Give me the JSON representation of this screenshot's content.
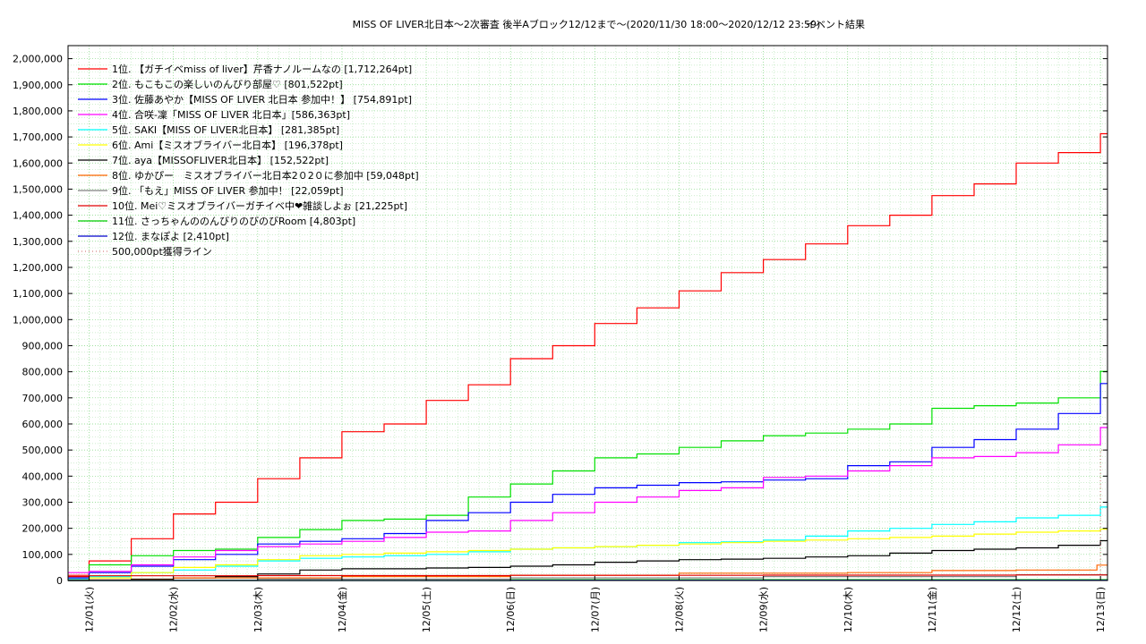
{
  "chart_data": {
    "type": "line",
    "title": "MISS OF LIVER北日本～2次審査 後半Aブロック12/12まで～(2020/11/30 18:00～2020/12/12 23:59)",
    "subtitle": "イベント結果",
    "xlabel": "",
    "ylabel": "",
    "grid": true,
    "legend_position": "top-left",
    "x_range": [
      "2020-11-30 18:00",
      "2020-12-13 02:00"
    ],
    "ylim": [
      0,
      2050000
    ],
    "y_ticks": [
      {
        "v": 0,
        "label": "0"
      },
      {
        "v": 100000,
        "label": "100,000"
      },
      {
        "v": 200000,
        "label": "200,000"
      },
      {
        "v": 300000,
        "label": "300,000"
      },
      {
        "v": 400000,
        "label": "400,000"
      },
      {
        "v": 500000,
        "label": "500,000"
      },
      {
        "v": 600000,
        "label": "600,000"
      },
      {
        "v": 700000,
        "label": "700,000"
      },
      {
        "v": 800000,
        "label": "800,000"
      },
      {
        "v": 900000,
        "label": "900,000"
      },
      {
        "v": 1000000,
        "label": "1,000,000"
      },
      {
        "v": 1100000,
        "label": "1,100,000"
      },
      {
        "v": 1200000,
        "label": "1,200,000"
      },
      {
        "v": 1300000,
        "label": "1,300,000"
      },
      {
        "v": 1400000,
        "label": "1,400,000"
      },
      {
        "v": 1500000,
        "label": "1,500,000"
      },
      {
        "v": 1600000,
        "label": "1,600,000"
      },
      {
        "v": 1700000,
        "label": "1,700,000"
      },
      {
        "v": 1800000,
        "label": "1,800,000"
      },
      {
        "v": 1900000,
        "label": "1,900,000"
      },
      {
        "v": 2000000,
        "label": "2,000,000"
      }
    ],
    "x_ticks": [
      {
        "x": "2020-12-01 00:00",
        "label": "12/01(火)"
      },
      {
        "x": "2020-12-02 00:00",
        "label": "12/02(水)"
      },
      {
        "x": "2020-12-03 00:00",
        "label": "12/03(木)"
      },
      {
        "x": "2020-12-04 00:00",
        "label": "12/04(金)"
      },
      {
        "x": "2020-12-05 00:00",
        "label": "12/05(土)"
      },
      {
        "x": "2020-12-06 00:00",
        "label": "12/06(日)"
      },
      {
        "x": "2020-12-07 00:00",
        "label": "12/07(月)"
      },
      {
        "x": "2020-12-08 00:00",
        "label": "12/08(火)"
      },
      {
        "x": "2020-12-09 00:00",
        "label": "12/09(水)"
      },
      {
        "x": "2020-12-10 00:00",
        "label": "12/10(木)"
      },
      {
        "x": "2020-12-11 00:00",
        "label": "12/11(金)"
      },
      {
        "x": "2020-12-12 00:00",
        "label": "12/12(土)"
      },
      {
        "x": "2020-12-13 00:00",
        "label": "12/13(日)"
      }
    ],
    "series": [
      {
        "name": "1位. 【ガチイベmiss of liver】芹香ナノルームなの [1,712,264pt]",
        "color": "#ff0000",
        "style": "solid",
        "x": [
          "2020-11-30 18:00",
          "2020-12-01 00:00",
          "2020-12-01 12:00",
          "2020-12-02 00:00",
          "2020-12-02 12:00",
          "2020-12-03 00:00",
          "2020-12-03 12:00",
          "2020-12-04 00:00",
          "2020-12-04 12:00",
          "2020-12-05 00:00",
          "2020-12-05 12:00",
          "2020-12-06 00:00",
          "2020-12-06 12:00",
          "2020-12-07 00:00",
          "2020-12-07 12:00",
          "2020-12-08 00:00",
          "2020-12-08 12:00",
          "2020-12-09 00:00",
          "2020-12-09 12:00",
          "2020-12-10 00:00",
          "2020-12-10 12:00",
          "2020-12-11 00:00",
          "2020-12-11 12:00",
          "2020-12-12 00:00",
          "2020-12-12 12:00",
          "2020-12-12 23:59",
          "2020-12-13 02:00"
        ],
        "y": [
          20000,
          75000,
          160000,
          255000,
          300000,
          390000,
          470000,
          570000,
          600000,
          690000,
          750000,
          850000,
          900000,
          985000,
          1045000,
          1110000,
          1180000,
          1230000,
          1290000,
          1360000,
          1400000,
          1475000,
          1520000,
          1600000,
          1640000,
          1712264,
          1712264
        ]
      },
      {
        "name": "2位. もこもこの楽しいのんびり部屋♡ [801,522pt]",
        "color": "#00e000",
        "style": "solid",
        "x": [
          "2020-11-30 18:00",
          "2020-12-01 00:00",
          "2020-12-01 12:00",
          "2020-12-02 00:00",
          "2020-12-02 12:00",
          "2020-12-03 00:00",
          "2020-12-03 12:00",
          "2020-12-04 00:00",
          "2020-12-04 12:00",
          "2020-12-05 00:00",
          "2020-12-05 12:00",
          "2020-12-06 00:00",
          "2020-12-06 12:00",
          "2020-12-07 00:00",
          "2020-12-07 12:00",
          "2020-12-08 00:00",
          "2020-12-08 12:00",
          "2020-12-09 00:00",
          "2020-12-09 12:00",
          "2020-12-10 00:00",
          "2020-12-10 12:00",
          "2020-12-11 00:00",
          "2020-12-11 12:00",
          "2020-12-12 00:00",
          "2020-12-12 12:00",
          "2020-12-12 23:59",
          "2020-12-13 02:00"
        ],
        "y": [
          5000,
          60000,
          95000,
          115000,
          120000,
          165000,
          195000,
          230000,
          235000,
          250000,
          320000,
          370000,
          420000,
          470000,
          485000,
          510000,
          535000,
          555000,
          565000,
          580000,
          600000,
          660000,
          670000,
          680000,
          700000,
          801522,
          801522
        ]
      },
      {
        "name": "3位. 佐藤あやか【MISS OF LIVER 北日本 参加中！】 [754,891pt]",
        "color": "#0000ff",
        "style": "solid",
        "x": [
          "2020-11-30 18:00",
          "2020-12-01 00:00",
          "2020-12-01 12:00",
          "2020-12-02 00:00",
          "2020-12-02 12:00",
          "2020-12-03 00:00",
          "2020-12-03 12:00",
          "2020-12-04 00:00",
          "2020-12-04 12:00",
          "2020-12-05 00:00",
          "2020-12-05 12:00",
          "2020-12-06 00:00",
          "2020-12-06 12:00",
          "2020-12-07 00:00",
          "2020-12-07 12:00",
          "2020-12-08 00:00",
          "2020-12-08 12:00",
          "2020-12-09 00:00",
          "2020-12-09 12:00",
          "2020-12-10 00:00",
          "2020-12-10 12:00",
          "2020-12-11 00:00",
          "2020-12-11 12:00",
          "2020-12-12 00:00",
          "2020-12-12 12:00",
          "2020-12-12 23:59",
          "2020-12-13 02:00"
        ],
        "y": [
          10000,
          30000,
          55000,
          80000,
          100000,
          140000,
          150000,
          160000,
          180000,
          230000,
          260000,
          300000,
          330000,
          355000,
          365000,
          375000,
          378000,
          385000,
          390000,
          440000,
          455000,
          510000,
          540000,
          580000,
          640000,
          754891,
          754891
        ]
      },
      {
        "name": "4位. 合咲-凜「MISS OF LIVER 北日本」[586,363pt]",
        "color": "#ff00ff",
        "style": "solid",
        "x": [
          "2020-11-30 18:00",
          "2020-12-01 00:00",
          "2020-12-01 12:00",
          "2020-12-02 00:00",
          "2020-12-02 12:00",
          "2020-12-03 00:00",
          "2020-12-03 12:00",
          "2020-12-04 00:00",
          "2020-12-04 12:00",
          "2020-12-05 00:00",
          "2020-12-05 12:00",
          "2020-12-06 00:00",
          "2020-12-06 12:00",
          "2020-12-07 00:00",
          "2020-12-07 12:00",
          "2020-12-08 00:00",
          "2020-12-08 12:00",
          "2020-12-09 00:00",
          "2020-12-09 12:00",
          "2020-12-10 00:00",
          "2020-12-10 12:00",
          "2020-12-11 00:00",
          "2020-12-11 12:00",
          "2020-12-12 00:00",
          "2020-12-12 12:00",
          "2020-12-12 23:59",
          "2020-12-13 02:00"
        ],
        "y": [
          30000,
          35000,
          60000,
          90000,
          115000,
          130000,
          140000,
          150000,
          165000,
          185000,
          190000,
          230000,
          260000,
          300000,
          320000,
          345000,
          355000,
          395000,
          400000,
          420000,
          440000,
          470000,
          475000,
          490000,
          520000,
          586363,
          586363
        ]
      },
      {
        "name": "5位. SAKI【MISS OF LIVER北日本】 [281,385pt]",
        "color": "#00ffff",
        "style": "solid",
        "x": [
          "2020-11-30 18:00",
          "2020-12-01 00:00",
          "2020-12-01 12:00",
          "2020-12-02 00:00",
          "2020-12-02 12:00",
          "2020-12-03 00:00",
          "2020-12-03 12:00",
          "2020-12-04 00:00",
          "2020-12-04 12:00",
          "2020-12-05 00:00",
          "2020-12-05 12:00",
          "2020-12-06 00:00",
          "2020-12-06 12:00",
          "2020-12-07 00:00",
          "2020-12-07 12:00",
          "2020-12-08 00:00",
          "2020-12-08 12:00",
          "2020-12-09 00:00",
          "2020-12-09 12:00",
          "2020-12-10 00:00",
          "2020-12-10 12:00",
          "2020-12-11 00:00",
          "2020-12-11 12:00",
          "2020-12-12 00:00",
          "2020-12-12 12:00",
          "2020-12-12 23:59",
          "2020-12-13 02:00"
        ],
        "y": [
          5000,
          15000,
          30000,
          40000,
          55000,
          75000,
          85000,
          90000,
          95000,
          100000,
          110000,
          120000,
          125000,
          130000,
          135000,
          145000,
          148000,
          155000,
          170000,
          190000,
          200000,
          215000,
          225000,
          240000,
          250000,
          281385,
          281385
        ]
      },
      {
        "name": "6位. Ami【ミスオブライバー北日本】 [196,378pt]",
        "color": "#ffff00",
        "style": "solid",
        "x": [
          "2020-11-30 18:00",
          "2020-12-01 00:00",
          "2020-12-01 12:00",
          "2020-12-02 00:00",
          "2020-12-02 12:00",
          "2020-12-03 00:00",
          "2020-12-03 12:00",
          "2020-12-04 00:00",
          "2020-12-04 12:00",
          "2020-12-05 00:00",
          "2020-12-05 12:00",
          "2020-12-06 00:00",
          "2020-12-06 12:00",
          "2020-12-07 00:00",
          "2020-12-07 12:00",
          "2020-12-08 00:00",
          "2020-12-08 12:00",
          "2020-12-09 00:00",
          "2020-12-09 12:00",
          "2020-12-10 00:00",
          "2020-12-10 12:00",
          "2020-12-11 00:00",
          "2020-12-11 12:00",
          "2020-12-12 00:00",
          "2020-12-12 12:00",
          "2020-12-12 23:59",
          "2020-12-13 02:00"
        ],
        "y": [
          0,
          10000,
          30000,
          50000,
          60000,
          80000,
          95000,
          100000,
          105000,
          110000,
          115000,
          120000,
          125000,
          130000,
          135000,
          140000,
          145000,
          150000,
          155000,
          160000,
          165000,
          170000,
          178000,
          185000,
          190000,
          196378,
          196378
        ]
      },
      {
        "name": "7位. aya【MISSOFLIVER北日本】 [152,522pt]",
        "color": "#000000",
        "style": "solid",
        "x": [
          "2020-11-30 18:00",
          "2020-12-01 00:00",
          "2020-12-01 12:00",
          "2020-12-02 00:00",
          "2020-12-02 12:00",
          "2020-12-03 00:00",
          "2020-12-03 12:00",
          "2020-12-04 00:00",
          "2020-12-04 12:00",
          "2020-12-05 00:00",
          "2020-12-05 12:00",
          "2020-12-06 00:00",
          "2020-12-06 12:00",
          "2020-12-07 00:00",
          "2020-12-07 12:00",
          "2020-12-08 00:00",
          "2020-12-08 12:00",
          "2020-12-09 00:00",
          "2020-12-09 12:00",
          "2020-12-10 00:00",
          "2020-12-10 12:00",
          "2020-12-11 00:00",
          "2020-12-11 12:00",
          "2020-12-12 00:00",
          "2020-12-12 12:00",
          "2020-12-12 23:59",
          "2020-12-13 02:00"
        ],
        "y": [
          0,
          2000,
          5000,
          10000,
          15000,
          25000,
          40000,
          45000,
          45000,
          48000,
          50000,
          55000,
          60000,
          70000,
          75000,
          80000,
          82000,
          85000,
          90000,
          95000,
          105000,
          115000,
          120000,
          125000,
          135000,
          152522,
          152522
        ]
      },
      {
        "name": "8位. ゆかぴー　ミスオブライバー北日本2０2０に参加中 [59,048pt]",
        "color": "#ff6600",
        "style": "solid",
        "x": [
          "2020-11-30 18:00",
          "2020-12-02 00:00",
          "2020-12-04 00:00",
          "2020-12-06 00:00",
          "2020-12-08 00:00",
          "2020-12-10 00:00",
          "2020-12-11 00:00",
          "2020-12-12 00:00",
          "2020-12-12 23:00",
          "2020-12-13 02:00"
        ],
        "y": [
          2000,
          10000,
          15000,
          20000,
          28000,
          30000,
          38000,
          40000,
          59048,
          59048
        ]
      },
      {
        "name": "9位. 「もえ」MISS OF LIVER 参加中！ [22,059pt]",
        "color": "#808080",
        "style": "solid",
        "x": [
          "2020-11-30 18:00",
          "2020-12-03 00:00",
          "2020-12-06 00:00",
          "2020-12-09 00:00",
          "2020-12-12 00:00",
          "2020-12-13 02:00"
        ],
        "y": [
          1000,
          5000,
          10000,
          15000,
          22059,
          22059
        ]
      },
      {
        "name": "10位. Mei♡ミスオブライバーガチイベ中❤雑談しよぉ [21,225pt]",
        "color": "#e00000",
        "style": "solid",
        "x": [
          "2020-11-30 18:00",
          "2020-12-01 00:00",
          "2020-12-03 00:00",
          "2020-12-06 00:00",
          "2020-12-09 00:00",
          "2020-12-12 00:00",
          "2020-12-13 02:00"
        ],
        "y": [
          15000,
          18000,
          19000,
          20000,
          20500,
          21225,
          21225
        ]
      },
      {
        "name": "11位. さっちゃんののんびりのびのびRoom [4,803pt]",
        "color": "#00cc00",
        "style": "solid",
        "x": [
          "2020-11-30 18:00",
          "2020-12-06 00:00",
          "2020-12-13 02:00"
        ],
        "y": [
          0,
          3000,
          4803
        ]
      },
      {
        "name": "12位. まなぽよ [2,410pt]",
        "color": "#0000cc",
        "style": "solid",
        "x": [
          "2020-11-30 18:00",
          "2020-12-06 00:00",
          "2020-12-13 02:00"
        ],
        "y": [
          0,
          1000,
          2410
        ]
      },
      {
        "name": "500,000pt獲得ライン",
        "color": "#cc6666",
        "style": "dotted",
        "x": [
          "2020-11-30 18:00",
          "2020-12-12 23:59",
          "2020-12-13 02:00"
        ],
        "y": [
          0,
          500000,
          500000
        ]
      }
    ]
  }
}
